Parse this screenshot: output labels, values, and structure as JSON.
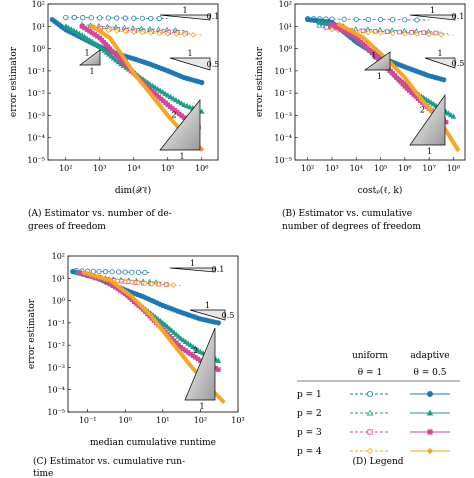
{
  "series_styles": [
    {
      "p": 1,
      "color": "#1f77b4"
    },
    {
      "p": 2,
      "color": "#1b9e87"
    },
    {
      "p": 3,
      "color": "#d6469b"
    },
    {
      "p": 4,
      "color": "#f5a623"
    }
  ],
  "legend": {
    "caption": "(D) Legend",
    "col_uniform": "uniform",
    "col_adaptive": "adaptive",
    "theta_uniform": "θ = 1",
    "theta_adaptive": "θ = 0.5",
    "rows": [
      "p = 1",
      "p = 2",
      "p = 3",
      "p = 4"
    ],
    "uniform_marks": [
      "circle",
      "triangle",
      "square",
      "diamond"
    ]
  },
  "chart_data": [
    {
      "type": "line",
      "panel": "A",
      "caption_lines": [
        "(A) Estimator vs. number of de-",
        "grees of freedom"
      ],
      "xlabel": "dim(𝒳ℓ)",
      "ylabel": "error estimator",
      "xscale": "log",
      "yscale": "log",
      "xlim": [
        30,
        3000000
      ],
      "ylim": [
        1e-05,
        100
      ],
      "xticks": [
        "10²",
        "10³",
        "10⁴",
        "10⁵",
        "10⁶"
      ],
      "xtick_values": [
        100,
        1000,
        10000,
        100000,
        1000000
      ],
      "yticks": [
        "10²",
        "10¹",
        "10⁰",
        "10⁻¹",
        "10⁻²",
        "10⁻³",
        "10⁻⁴",
        "10⁻⁵"
      ],
      "ytick_values": [
        100,
        10,
        1,
        0.1,
        0.01,
        0.001,
        0.0001,
        1e-05
      ],
      "slope_labels": [
        {
          "text": "1",
          "pos": "top"
        },
        {
          "text": "0.1",
          "pos": "top-right"
        },
        {
          "text": "1",
          "pos": "upper"
        },
        {
          "text": "0.5",
          "pos": "upper-right"
        },
        {
          "text": "1",
          "pos": "left-top"
        },
        {
          "text": "1",
          "pos": "left-bottom"
        },
        {
          "text": "2",
          "pos": "lower"
        },
        {
          "text": "1",
          "pos": "lower-bottom"
        }
      ],
      "uniform": [
        {
          "name": "p = 1",
          "x": [
            100,
            1000,
            10000,
            100000
          ],
          "y": [
            25,
            24,
            23,
            22
          ]
        },
        {
          "name": "p = 2",
          "x": [
            300,
            3000,
            30000,
            300000
          ],
          "y": [
            12,
            9,
            7.5,
            6.5
          ]
        },
        {
          "name": "p = 3",
          "x": [
            600,
            6000,
            60000,
            600000
          ],
          "y": [
            9,
            6.5,
            5.5,
            4.8
          ]
        },
        {
          "name": "p = 4",
          "x": [
            1000,
            10000,
            100000,
            1000000
          ],
          "y": [
            7,
            5.5,
            4.6,
            4.0
          ]
        }
      ],
      "adaptive": [
        {
          "name": "p = 1",
          "x": [
            40,
            100,
            300,
            1000,
            3000,
            10000,
            30000,
            100000,
            300000,
            1000000
          ],
          "y": [
            20,
            7,
            3,
            1.2,
            0.6,
            0.35,
            0.2,
            0.1,
            0.05,
            0.03
          ]
        },
        {
          "name": "p = 2",
          "x": [
            100,
            300,
            1000,
            3000,
            10000,
            30000,
            100000,
            300000,
            1000000
          ],
          "y": [
            10,
            4,
            1.2,
            0.3,
            0.08,
            0.025,
            0.008,
            0.003,
            0.0015
          ]
        },
        {
          "name": "p = 3",
          "x": [
            300,
            1000,
            3000,
            10000,
            30000,
            100000,
            300000,
            800000
          ],
          "y": [
            10,
            3,
            0.5,
            0.08,
            0.015,
            0.003,
            0.0008,
            0.0003
          ]
        },
        {
          "name": "p = 4",
          "x": [
            600,
            2000,
            5000,
            10000,
            30000,
            100000,
            300000,
            1000000
          ],
          "y": [
            10,
            3,
            0.4,
            0.08,
            0.01,
            0.001,
            0.00015,
            3e-05
          ]
        }
      ]
    },
    {
      "type": "line",
      "panel": "B",
      "caption_lines": [
        "(B) Estimator vs. cumulative",
        "number of degrees of freedom"
      ],
      "xlabel": "costₚ(ℓ, k)",
      "ylabel": "error estimator",
      "xscale": "log",
      "yscale": "log",
      "xlim": [
        30,
        300000000
      ],
      "ylim": [
        1e-05,
        100
      ],
      "xticks": [
        "10²",
        "10³",
        "10⁴",
        "10⁵",
        "10⁶",
        "10⁷",
        "10⁸"
      ],
      "xtick_values": [
        100,
        1000,
        10000,
        100000,
        1000000,
        10000000,
        100000000
      ],
      "yticks": [
        "10²",
        "10¹",
        "10⁰",
        "10⁻¹",
        "10⁻²",
        "10⁻³",
        "10⁻⁴",
        "10⁻⁵"
      ],
      "ytick_values": [
        100,
        10,
        1,
        0.1,
        0.01,
        0.001,
        0.0001,
        1e-05
      ],
      "slope_labels": [
        {
          "text": "1",
          "pos": "top"
        },
        {
          "text": "0.1",
          "pos": "top-right"
        },
        {
          "text": "1",
          "pos": "upper"
        },
        {
          "text": "0.5",
          "pos": "upper-right"
        },
        {
          "text": "1",
          "pos": "left-top"
        },
        {
          "text": "1",
          "pos": "left-bottom"
        },
        {
          "text": "2",
          "pos": "lower"
        },
        {
          "text": "1",
          "pos": "lower-bottom"
        }
      ],
      "uniform": [
        {
          "name": "p = 1",
          "x": [
            100,
            1000,
            100000,
            10000000
          ],
          "y": [
            22,
            21,
            20,
            19
          ]
        },
        {
          "name": "p = 2",
          "x": [
            300,
            3000,
            300000,
            30000000
          ],
          "y": [
            11,
            8,
            6.5,
            5.5
          ]
        },
        {
          "name": "p = 3",
          "x": [
            600,
            6000,
            600000,
            60000000
          ],
          "y": [
            9,
            6.5,
            5.5,
            4.8
          ]
        },
        {
          "name": "p = 4",
          "x": [
            1000,
            10000,
            1000000,
            100000000
          ],
          "y": [
            7,
            5.5,
            4.6,
            4.0
          ]
        }
      ],
      "adaptive": [
        {
          "name": "p = 1",
          "x": [
            100,
            1000,
            10000,
            100000,
            1000000,
            10000000,
            40000000
          ],
          "y": [
            20,
            15,
            2,
            0.4,
            0.15,
            0.06,
            0.04
          ]
        },
        {
          "name": "p = 2",
          "x": [
            300,
            3000,
            30000,
            300000,
            3000000,
            30000000,
            100000000
          ],
          "y": [
            15,
            10,
            1,
            0.08,
            0.01,
            0.002,
            0.0009
          ]
        },
        {
          "name": "p = 3",
          "x": [
            1000,
            10000,
            100000,
            1000000,
            10000000,
            50000000
          ],
          "y": [
            12,
            3,
            0.3,
            0.02,
            0.002,
            0.0005
          ]
        },
        {
          "name": "p = 4",
          "x": [
            2000,
            20000,
            200000,
            1000000,
            5000000,
            30000000,
            150000000
          ],
          "y": [
            12,
            3,
            0.3,
            0.05,
            0.005,
            0.0005,
            3e-05
          ]
        }
      ]
    },
    {
      "type": "line",
      "panel": "C",
      "caption_lines": [
        "(C) Estimator vs. cumulative run-",
        "time"
      ],
      "xlabel": "median cumulative runtime",
      "ylabel": "error estimator",
      "xscale": "log",
      "yscale": "log",
      "xlim": [
        0.03,
        1000
      ],
      "ylim": [
        1e-05,
        100
      ],
      "xticks": [
        "10⁻¹",
        "10⁰",
        "10¹",
        "10²",
        "10³"
      ],
      "xtick_values": [
        0.1,
        1,
        10,
        100,
        1000
      ],
      "yticks": [
        "10²",
        "10¹",
        "10⁰",
        "10⁻¹",
        "10⁻²",
        "10⁻³",
        "10⁻⁴",
        "10⁻⁵"
      ],
      "ytick_values": [
        100,
        10,
        1,
        0.1,
        0.01,
        0.001,
        0.0001,
        1e-05
      ],
      "slope_labels": [
        {
          "text": "1",
          "pos": "top"
        },
        {
          "text": "0.1",
          "pos": "top-right"
        },
        {
          "text": "1",
          "pos": "upper"
        },
        {
          "text": "0.5",
          "pos": "upper-right"
        },
        {
          "text": "2",
          "pos": "lower"
        },
        {
          "text": "1",
          "pos": "lower-bottom"
        }
      ],
      "uniform": [
        {
          "name": "p = 1",
          "x": [
            0.05,
            0.2,
            1,
            5
          ],
          "y": [
            22,
            20,
            19,
            18
          ]
        },
        {
          "name": "p = 2",
          "x": [
            0.08,
            0.3,
            2,
            10
          ],
          "y": [
            15,
            10,
            7.5,
            6.5
          ]
        },
        {
          "name": "p = 3",
          "x": [
            0.1,
            0.5,
            3,
            20
          ],
          "y": [
            13,
            8,
            6,
            5
          ]
        },
        {
          "name": "p = 4",
          "x": [
            0.15,
            1,
            5,
            30
          ],
          "y": [
            10,
            7,
            5.5,
            4.8
          ]
        }
      ],
      "adaptive": [
        {
          "name": "p = 1",
          "x": [
            0.04,
            0.1,
            0.3,
            1,
            3,
            10,
            30,
            100,
            300
          ],
          "y": [
            20,
            15,
            7,
            3,
            1.5,
            0.6,
            0.3,
            0.15,
            0.1
          ]
        },
        {
          "name": "p = 2",
          "x": [
            0.05,
            0.2,
            0.8,
            3,
            10,
            30,
            100,
            300
          ],
          "y": [
            18,
            10,
            3,
            0.5,
            0.1,
            0.02,
            0.005,
            0.002
          ]
        },
        {
          "name": "p = 3",
          "x": [
            0.06,
            0.3,
            1,
            3,
            10,
            30,
            100,
            300
          ],
          "y": [
            18,
            8,
            2,
            0.4,
            0.05,
            0.008,
            0.002,
            0.0008
          ]
        },
        {
          "name": "p = 4",
          "x": [
            0.08,
            0.4,
            1.5,
            5,
            20,
            60,
            200,
            400
          ],
          "y": [
            18,
            8,
            1.5,
            0.2,
            0.01,
            0.001,
            0.0001,
            3e-05
          ]
        }
      ]
    }
  ]
}
